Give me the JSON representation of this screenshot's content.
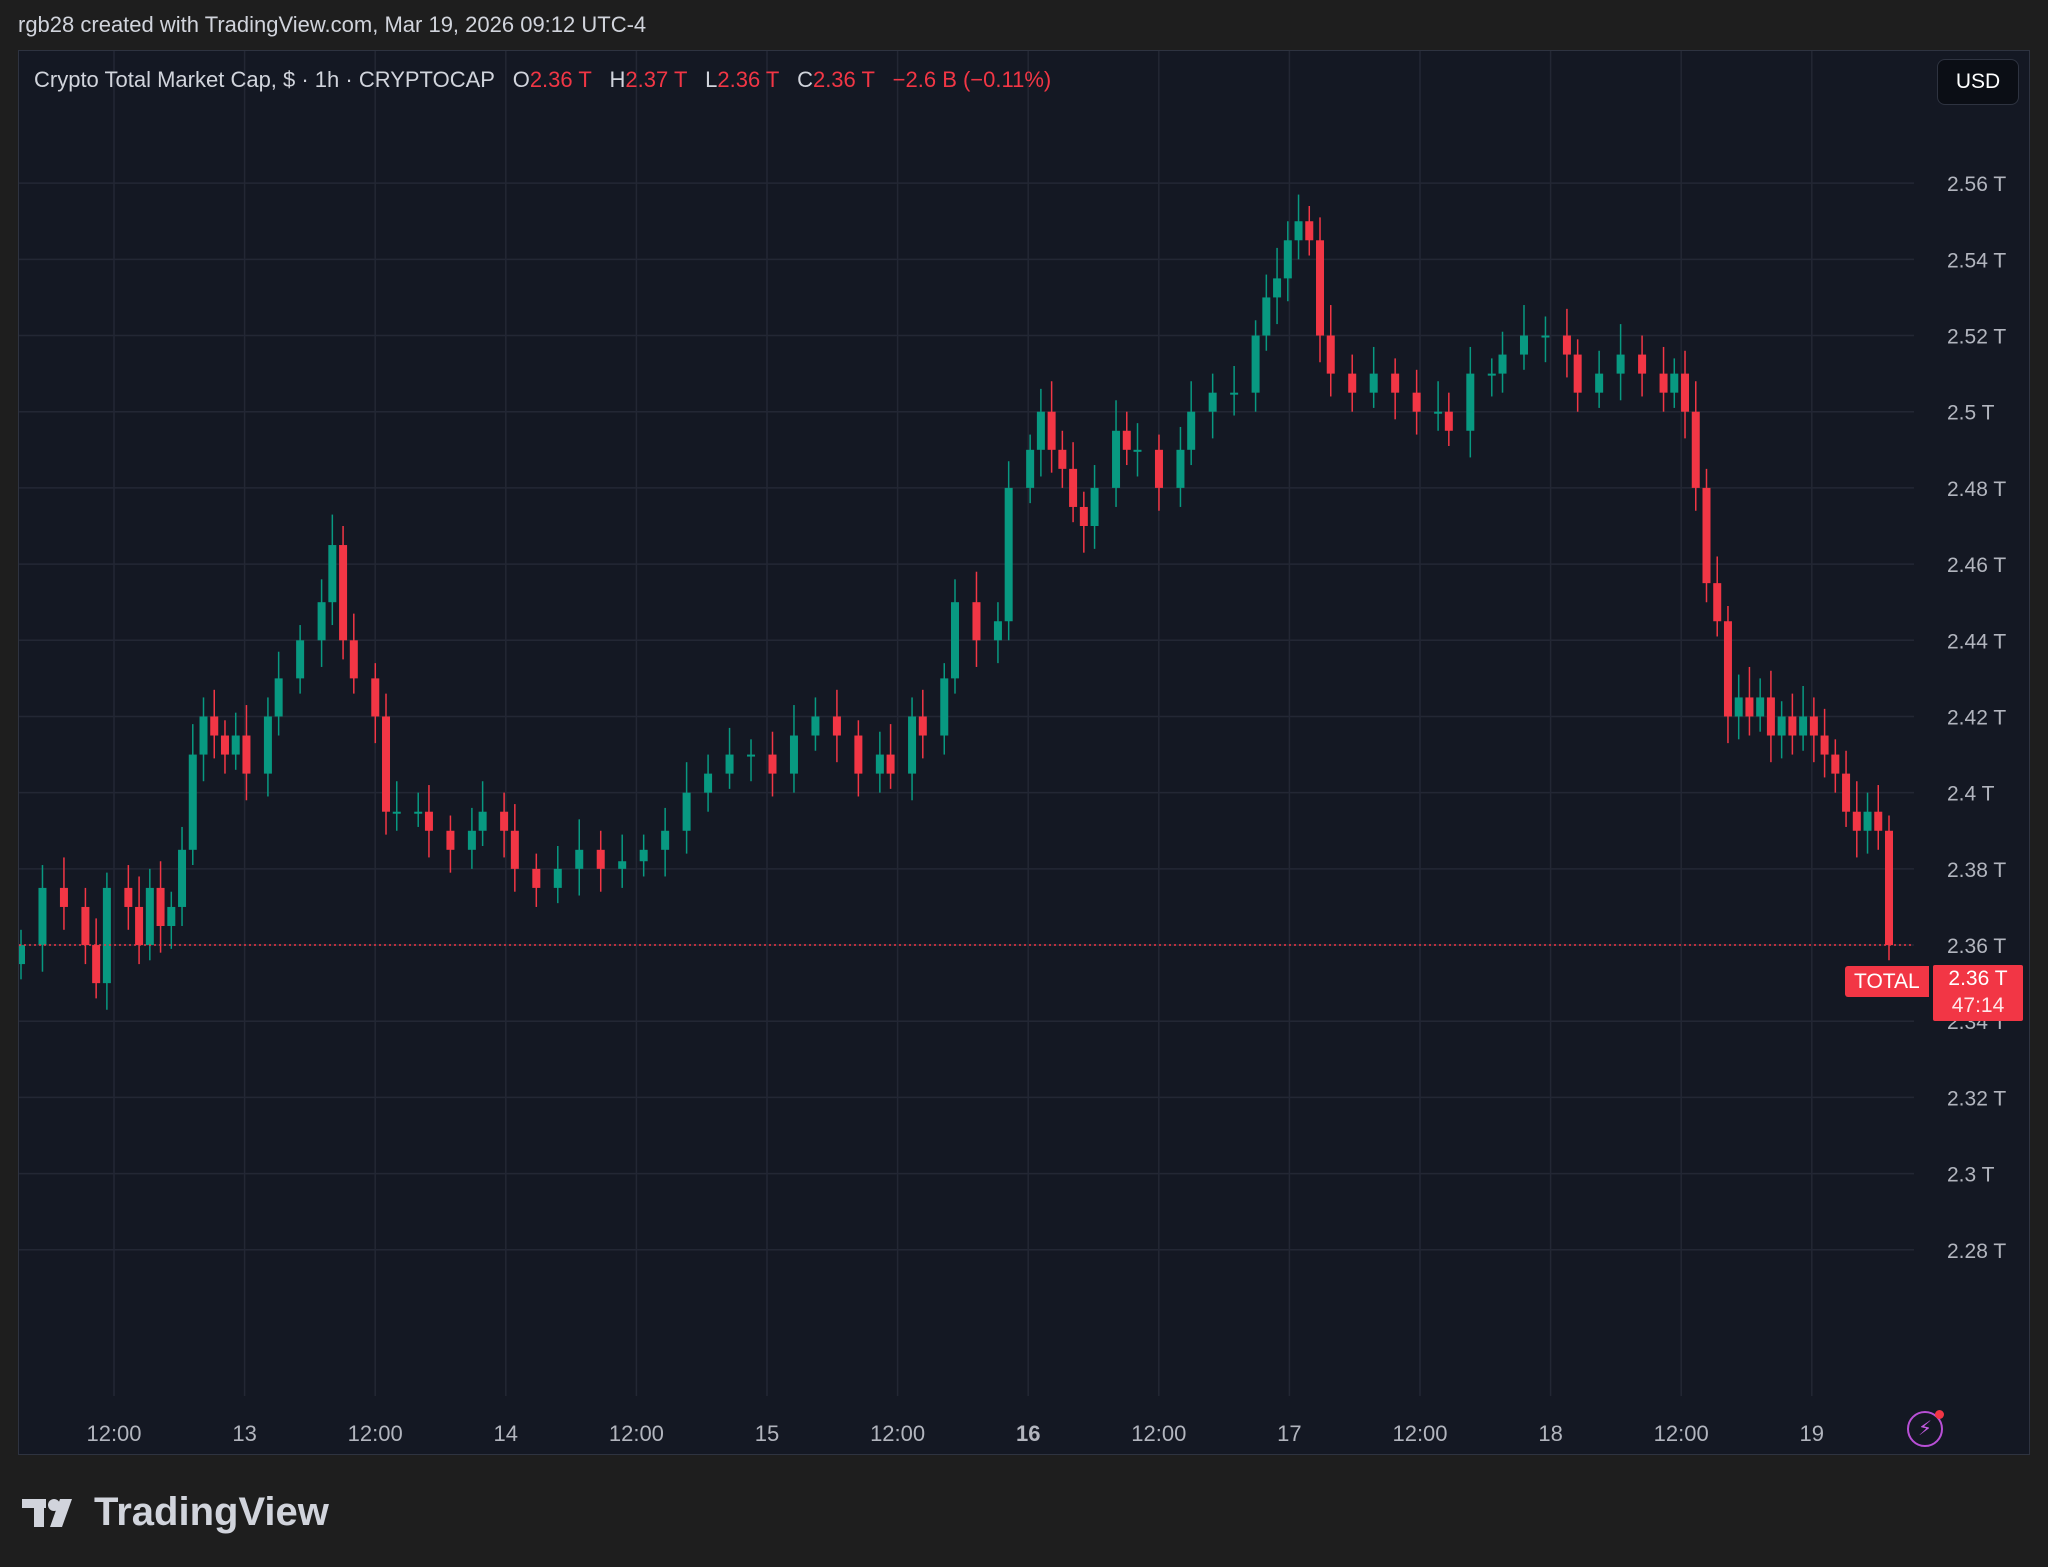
{
  "credit": "rgb28 created with TradingView.com, Mar 19, 2026 09:12 UTC-4",
  "legend": {
    "title": "Crypto Total Market Cap, $ · 1h · CRYPTOCAP",
    "o_label": "O",
    "o_value": "2.36 T",
    "h_label": "H",
    "h_value": "2.37 T",
    "l_label": "L",
    "l_value": "2.36 T",
    "c_label": "C",
    "c_value": "2.36 T",
    "change": "−2.6 B (−0.11%)"
  },
  "currency_button": "USD",
  "ticker_tag": "TOTAL",
  "last_price": "2.36 T",
  "countdown": "47:14",
  "brand": "TradingView",
  "icons": {
    "alert": "lightning-bolt-icon",
    "logo": "tradingview-logo-icon"
  },
  "colors": {
    "up": "#089981",
    "down": "#f23645",
    "background": "#141823",
    "grid": "#232734"
  },
  "chart_data": {
    "type": "candlestick",
    "title": "Crypto Total Market Cap, $",
    "interval": "1h",
    "x_tick_labels": [
      "12:00",
      "13",
      "12:00",
      "14",
      "12:00",
      "15",
      "12:00",
      "16",
      "12:00",
      "17",
      "12:00",
      "18",
      "12:00",
      "19"
    ],
    "y_tick_labels": [
      "2.56 T",
      "2.54 T",
      "2.52 T",
      "2.5 T",
      "2.48 T",
      "2.46 T",
      "2.44 T",
      "2.42 T",
      "2.4 T",
      "2.38 T",
      "2.36 T",
      "2.34 T",
      "2.32 T",
      "2.3 T",
      "2.28 T"
    ],
    "y_ticks": [
      2.56,
      2.54,
      2.52,
      2.5,
      2.48,
      2.46,
      2.44,
      2.42,
      2.4,
      2.38,
      2.36,
      2.34,
      2.32,
      2.3,
      2.28
    ],
    "ylim": [
      2.26,
      2.575
    ],
    "unit": "T",
    "last_value": 2.36,
    "x_range_hours": [
      2,
      176
    ],
    "candles_hour_close": [
      [
        2,
        2.36
      ],
      [
        4,
        2.375
      ],
      [
        6,
        2.37
      ],
      [
        8,
        2.36
      ],
      [
        9,
        2.35
      ],
      [
        10,
        2.375
      ],
      [
        12,
        2.37
      ],
      [
        13,
        2.36
      ],
      [
        14,
        2.375
      ],
      [
        15,
        2.365
      ],
      [
        16,
        2.37
      ],
      [
        17,
        2.385
      ],
      [
        18,
        2.41
      ],
      [
        19,
        2.42
      ],
      [
        20,
        2.415
      ],
      [
        21,
        2.41
      ],
      [
        22,
        2.415
      ],
      [
        23,
        2.405
      ],
      [
        25,
        2.42
      ],
      [
        26,
        2.43
      ],
      [
        28,
        2.44
      ],
      [
        30,
        2.45
      ],
      [
        31,
        2.465
      ],
      [
        32,
        2.44
      ],
      [
        33,
        2.43
      ],
      [
        35,
        2.42
      ],
      [
        36,
        2.395
      ],
      [
        37,
        2.395
      ],
      [
        39,
        2.395
      ],
      [
        40,
        2.39
      ],
      [
        42,
        2.385
      ],
      [
        44,
        2.39
      ],
      [
        45,
        2.395
      ],
      [
        47,
        2.39
      ],
      [
        48,
        2.38
      ],
      [
        50,
        2.375
      ],
      [
        52,
        2.38
      ],
      [
        54,
        2.385
      ],
      [
        56,
        2.38
      ],
      [
        58,
        2.382
      ],
      [
        60,
        2.385
      ],
      [
        62,
        2.39
      ],
      [
        64,
        2.4
      ],
      [
        66,
        2.405
      ],
      [
        68,
        2.41
      ],
      [
        70,
        2.41
      ],
      [
        72,
        2.405
      ],
      [
        74,
        2.415
      ],
      [
        76,
        2.42
      ],
      [
        78,
        2.415
      ],
      [
        80,
        2.405
      ],
      [
        82,
        2.41
      ],
      [
        83,
        2.405
      ],
      [
        85,
        2.42
      ],
      [
        86,
        2.415
      ],
      [
        88,
        2.43
      ],
      [
        89,
        2.45
      ],
      [
        91,
        2.44
      ],
      [
        93,
        2.445
      ],
      [
        94,
        2.48
      ],
      [
        96,
        2.49
      ],
      [
        97,
        2.5
      ],
      [
        98,
        2.49
      ],
      [
        99,
        2.485
      ],
      [
        100,
        2.475
      ],
      [
        101,
        2.47
      ],
      [
        102,
        2.48
      ],
      [
        104,
        2.495
      ],
      [
        105,
        2.49
      ],
      [
        106,
        2.49
      ],
      [
        108,
        2.48
      ],
      [
        110,
        2.49
      ],
      [
        111,
        2.5
      ],
      [
        113,
        2.505
      ],
      [
        115,
        2.505
      ],
      [
        117,
        2.52
      ],
      [
        118,
        2.53
      ],
      [
        119,
        2.535
      ],
      [
        120,
        2.545
      ],
      [
        121,
        2.55
      ],
      [
        122,
        2.545
      ],
      [
        123,
        2.52
      ],
      [
        124,
        2.51
      ],
      [
        126,
        2.505
      ],
      [
        128,
        2.51
      ],
      [
        130,
        2.505
      ],
      [
        132,
        2.5
      ],
      [
        134,
        2.5
      ],
      [
        135,
        2.495
      ],
      [
        137,
        2.51
      ],
      [
        139,
        2.51
      ],
      [
        140,
        2.515
      ],
      [
        142,
        2.52
      ],
      [
        144,
        2.52
      ],
      [
        146,
        2.515
      ],
      [
        147,
        2.505
      ],
      [
        149,
        2.51
      ],
      [
        151,
        2.515
      ],
      [
        153,
        2.51
      ],
      [
        155,
        2.505
      ],
      [
        156,
        2.51
      ],
      [
        157,
        2.5
      ],
      [
        158,
        2.48
      ],
      [
        159,
        2.455
      ],
      [
        160,
        2.445
      ],
      [
        161,
        2.42
      ],
      [
        162,
        2.425
      ],
      [
        163,
        2.42
      ],
      [
        164,
        2.425
      ],
      [
        165,
        2.415
      ],
      [
        166,
        2.42
      ],
      [
        167,
        2.415
      ],
      [
        168,
        2.42
      ],
      [
        169,
        2.415
      ],
      [
        170,
        2.41
      ],
      [
        171,
        2.405
      ],
      [
        172,
        2.395
      ],
      [
        173,
        2.39
      ],
      [
        174,
        2.395
      ],
      [
        175,
        2.39
      ],
      [
        176,
        2.36
      ]
    ]
  }
}
